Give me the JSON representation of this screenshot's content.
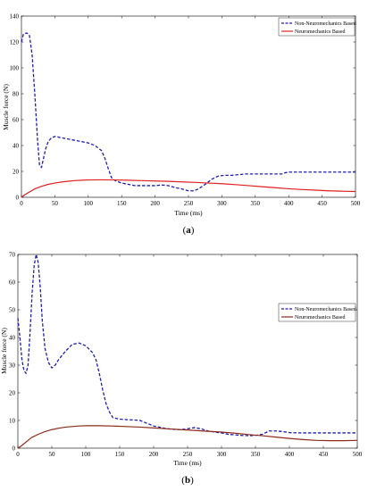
{
  "colors": {
    "non_neuro": "#1f1fb4",
    "neuro": "#e02020",
    "neuro_b": "#8b2a1a",
    "frame": "#000000"
  },
  "chart_data": [
    {
      "type": "line",
      "caption": "a",
      "xlabel": "Time (ms)",
      "ylabel": "Muscle force (N)",
      "xlim": [
        0,
        500
      ],
      "ylim": [
        0,
        140
      ],
      "xticks": [
        0,
        50,
        100,
        150,
        200,
        250,
        300,
        350,
        400,
        450,
        500
      ],
      "yticks": [
        0,
        20,
        40,
        60,
        80,
        100,
        120,
        140
      ],
      "legend_position": "top-right",
      "series": [
        {
          "name": "Non-Neuromechanics Based",
          "style": "dashed",
          "x": [
            0,
            3,
            8,
            12,
            16,
            20,
            24,
            27,
            30,
            33,
            36,
            40,
            45,
            50,
            60,
            70,
            80,
            90,
            100,
            110,
            120,
            125,
            130,
            135,
            140,
            150,
            160,
            170,
            180,
            190,
            200,
            210,
            220,
            230,
            240,
            250,
            258,
            265,
            275,
            285,
            295,
            305,
            315,
            325,
            335,
            345,
            360,
            375,
            385,
            390,
            395,
            400,
            420,
            450,
            480,
            500
          ],
          "y": [
            120,
            126,
            127,
            125,
            110,
            80,
            45,
            25,
            23,
            30,
            37,
            43,
            46,
            47,
            46,
            45,
            44,
            43,
            42,
            40,
            36,
            30,
            22,
            15,
            13,
            11,
            10,
            9,
            9,
            9,
            9,
            9.5,
            9,
            7.5,
            6.5,
            5,
            5,
            6.5,
            10,
            14,
            16.5,
            17,
            17,
            17.5,
            18,
            18,
            18,
            18,
            18,
            18,
            19,
            19.5,
            19.5,
            19.5,
            19.5,
            19.5
          ]
        },
        {
          "name": "Neuromechanics Based",
          "style": "solid",
          "x": [
            0,
            5,
            10,
            15,
            20,
            30,
            40,
            50,
            60,
            70,
            80,
            90,
            100,
            120,
            140,
            160,
            180,
            200,
            220,
            240,
            260,
            280,
            300,
            320,
            340,
            360,
            380,
            400,
            420,
            440,
            460,
            480,
            500
          ],
          "y": [
            0,
            2,
            3.5,
            5,
            6.5,
            8.5,
            10,
            11,
            11.8,
            12.4,
            12.9,
            13.2,
            13.4,
            13.5,
            13.4,
            13.2,
            12.9,
            12.6,
            12.3,
            11.9,
            11.5,
            11,
            10.5,
            9.8,
            9,
            8.2,
            7.4,
            6.6,
            6,
            5.5,
            5,
            4.7,
            4.5
          ]
        }
      ]
    },
    {
      "type": "line",
      "caption": "b",
      "xlabel": "Time (ms)",
      "ylabel": "Muscle force (N)",
      "xlim": [
        0,
        500
      ],
      "ylim": [
        0,
        70
      ],
      "xticks": [
        0,
        50,
        100,
        150,
        200,
        250,
        300,
        350,
        400,
        450,
        500
      ],
      "yticks": [
        0,
        10,
        20,
        30,
        40,
        50,
        60,
        70
      ],
      "legend_position": "top-right",
      "series": [
        {
          "name": "Non-Neuromechanics Based",
          "style": "dashed",
          "x": [
            0,
            3,
            6,
            9,
            12,
            15,
            18,
            21,
            24,
            27,
            30,
            33,
            36,
            40,
            45,
            50,
            55,
            60,
            70,
            80,
            90,
            100,
            110,
            115,
            120,
            125,
            130,
            135,
            140,
            150,
            160,
            170,
            180,
            190,
            200,
            210,
            220,
            230,
            240,
            250,
            260,
            270,
            280,
            290,
            300,
            310,
            320,
            330,
            340,
            350,
            360,
            370,
            380,
            390,
            400,
            420,
            450,
            480,
            500
          ],
          "y": [
            47,
            40,
            32,
            28,
            27,
            30,
            42,
            56,
            66,
            70,
            67,
            58,
            46,
            36,
            31,
            29,
            30,
            32,
            35,
            37.5,
            38,
            37,
            34.5,
            32,
            27,
            21,
            16,
            13,
            11,
            10.5,
            10.3,
            10.2,
            10,
            9,
            8,
            7.5,
            7,
            6.8,
            6.7,
            7,
            7.4,
            7,
            6.2,
            5.8,
            5.5,
            5,
            4.8,
            4.6,
            4.5,
            4.6,
            5,
            6.2,
            6.2,
            6,
            5.6,
            5.5,
            5.5,
            5.5,
            5.5
          ]
        },
        {
          "name": "Neuromechanics Based",
          "style": "solid",
          "x": [
            0,
            5,
            10,
            15,
            20,
            30,
            40,
            50,
            60,
            70,
            80,
            90,
            100,
            110,
            120,
            140,
            160,
            180,
            200,
            220,
            240,
            260,
            280,
            300,
            320,
            340,
            360,
            380,
            400,
            420,
            440,
            460,
            480,
            500
          ],
          "y": [
            0,
            0.8,
            1.8,
            2.8,
            3.8,
            5,
            6,
            6.7,
            7.2,
            7.6,
            7.8,
            8,
            8.1,
            8.1,
            8.1,
            8,
            7.8,
            7.6,
            7.3,
            7,
            6.7,
            6.4,
            6.1,
            5.8,
            5.4,
            4.9,
            4.5,
            4,
            3.5,
            3.1,
            2.8,
            2.7,
            2.7,
            2.8
          ]
        }
      ]
    }
  ]
}
